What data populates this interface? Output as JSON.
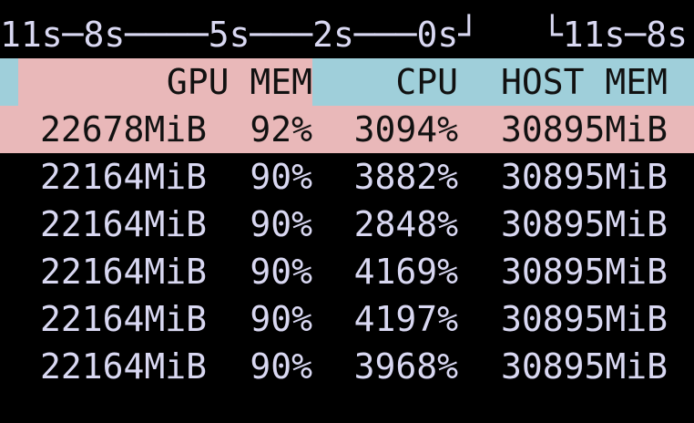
{
  "timeline": "11s─8s────5s───2s───0s┘   └11s─8s",
  "header": {
    "gpu_mem": "GPU MEM",
    "cpu": "CPU",
    "host_mem": "HOST MEM"
  },
  "table": {
    "rows": [
      [
        "22678MiB",
        "92%",
        "3094%",
        "30895MiB"
      ],
      [
        "22164MiB",
        "90%",
        "3882%",
        "30895MiB"
      ],
      [
        "22164MiB",
        "90%",
        "2848%",
        "30895MiB"
      ],
      [
        "22164MiB",
        "90%",
        "4169%",
        "30895MiB"
      ],
      [
        "22164MiB",
        "90%",
        "4197%",
        "30895MiB"
      ],
      [
        "22164MiB",
        "90%",
        "3968%",
        "30895MiB"
      ]
    ]
  }
}
